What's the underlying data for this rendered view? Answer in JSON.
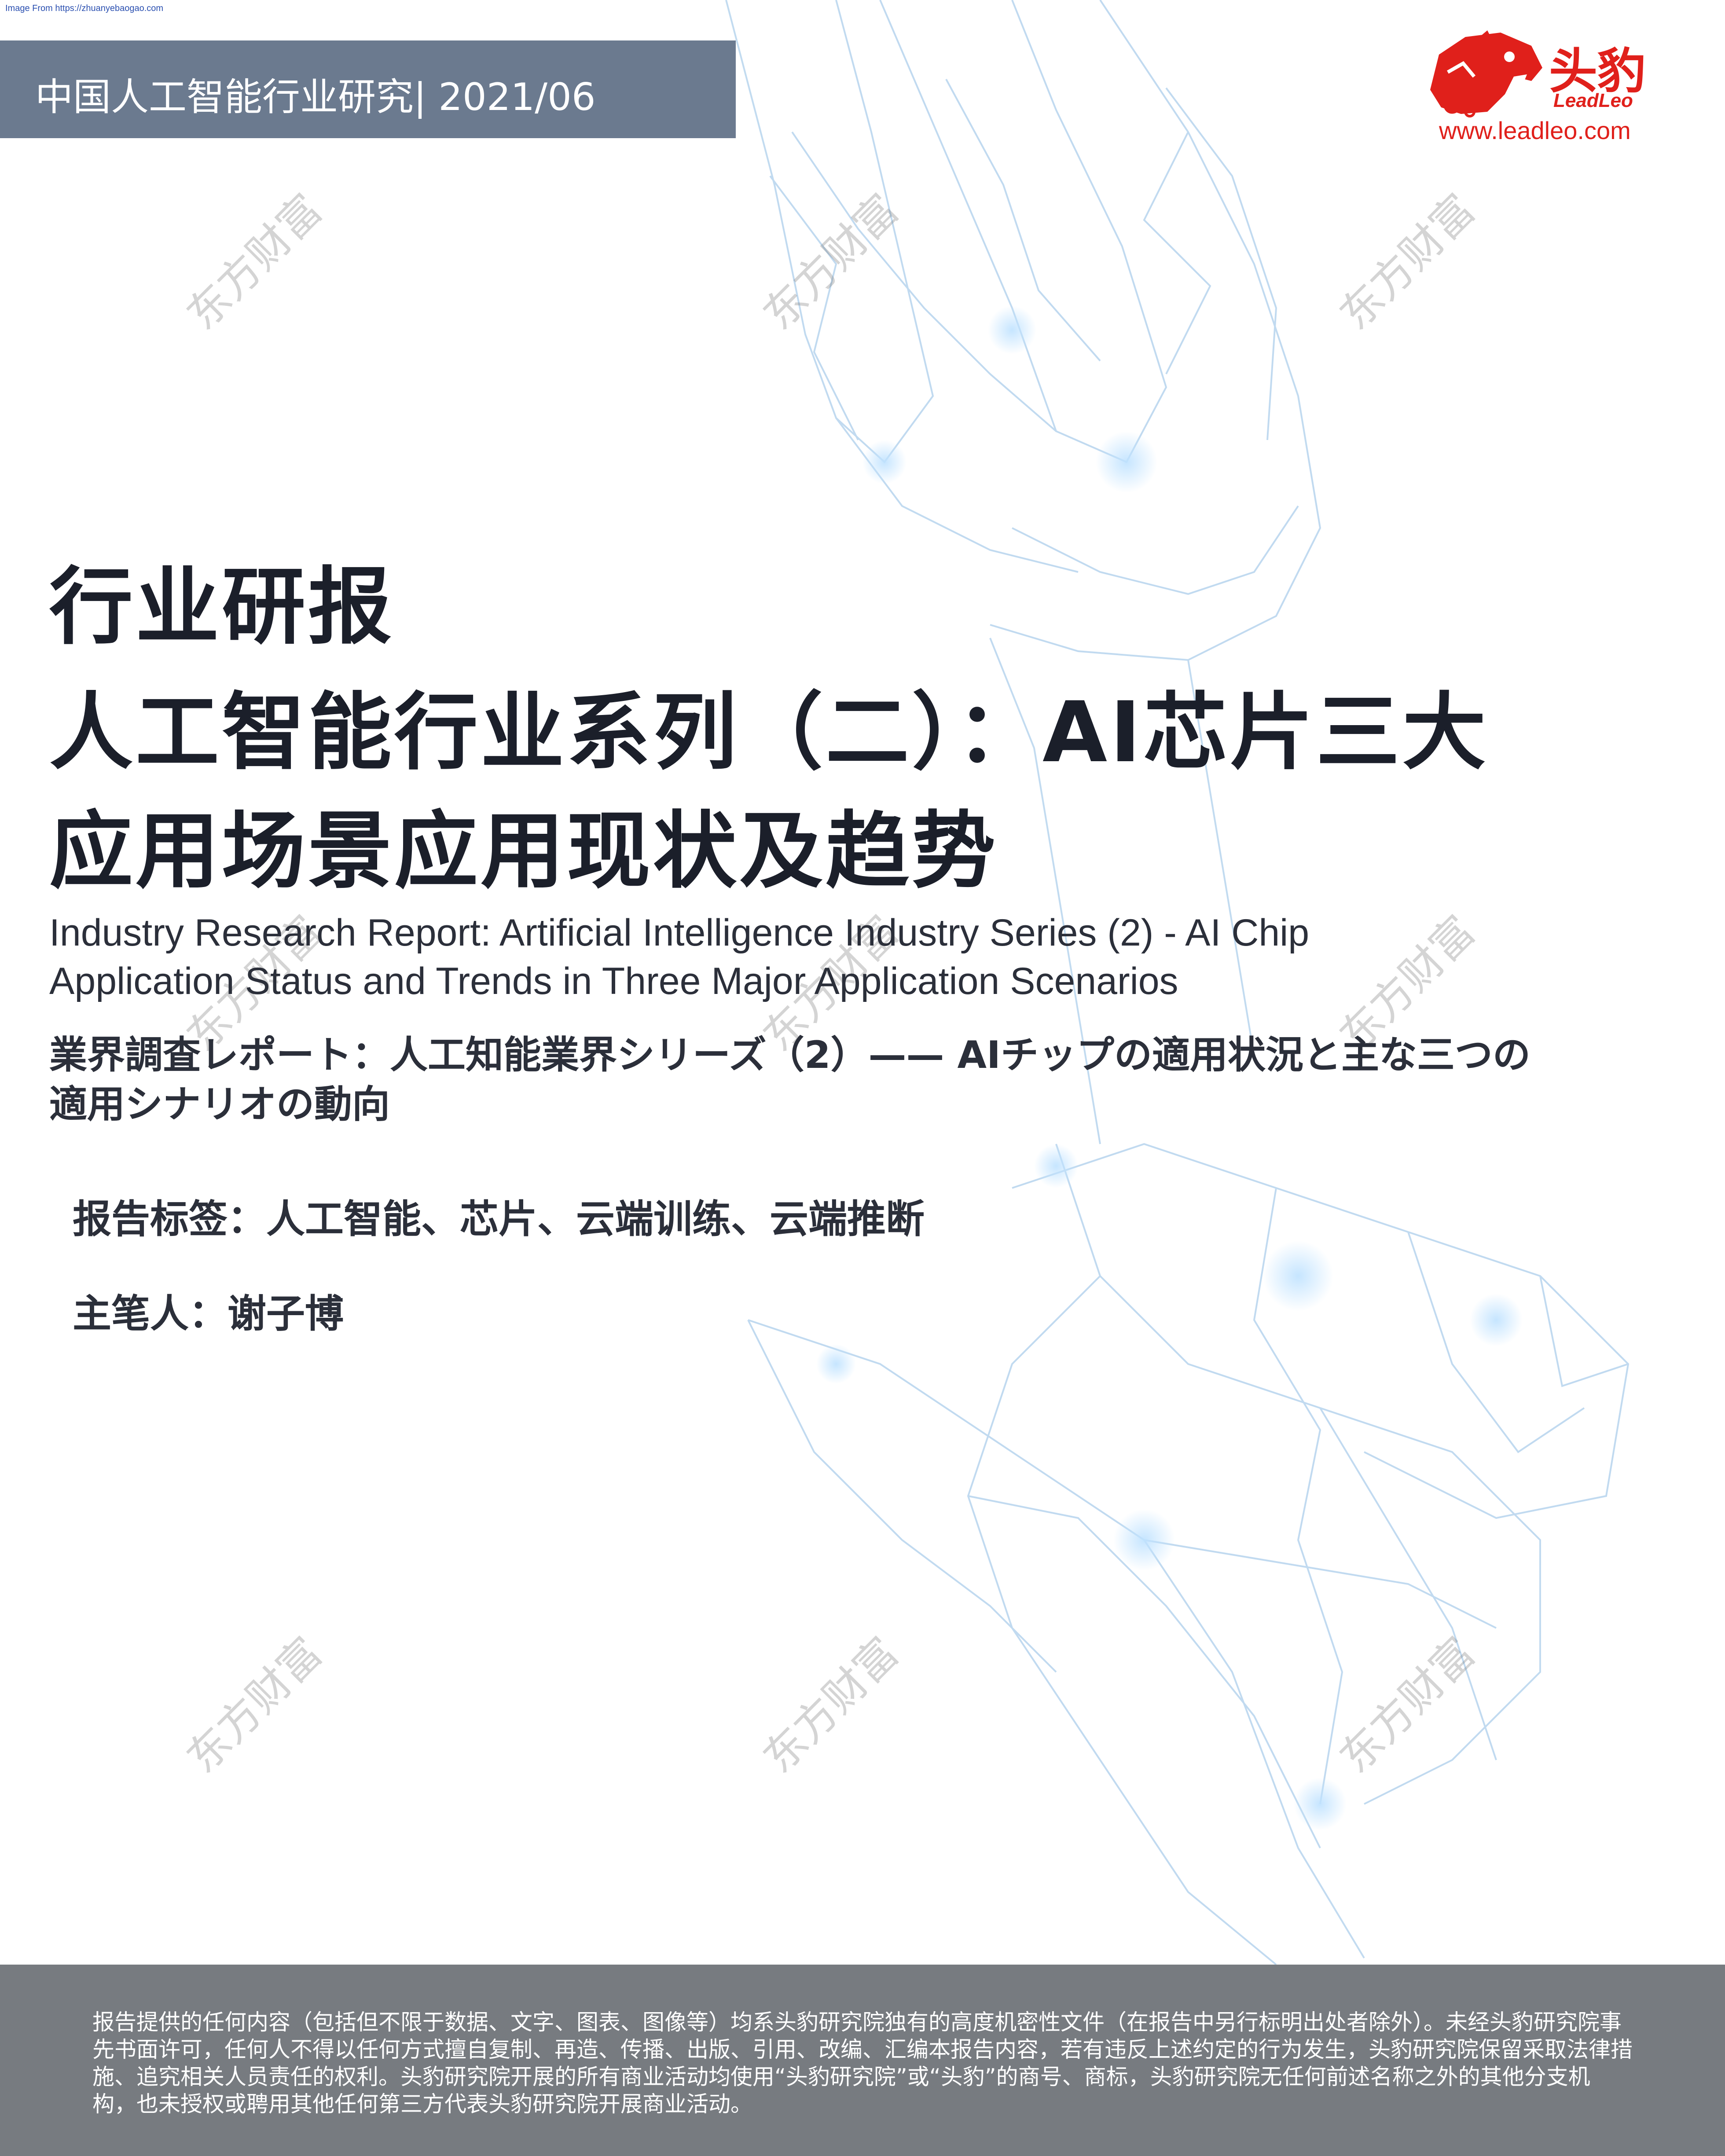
{
  "source_note": "Image From https://zhuanyebaogao.com",
  "header": {
    "series": "中国人工智能行业研究| 2021/06"
  },
  "logo": {
    "name_cn": "头豹",
    "name_en": "LeadLeo",
    "url": "www.leadleo.com",
    "icon": "leopard-head-icon",
    "brand_color": "#e0201b"
  },
  "watermark": {
    "text": "东方财富"
  },
  "title": {
    "kicker": "行业研报",
    "main": "人工智能行业系列（二）：AI芯片三大应用场景应用现状及趋势",
    "english": "Industry Research Report: Artificial Intelligence Industry Series (2) - AI Chip Application Status and Trends in Three Major Application Scenarios",
    "japanese": "業界調査レポート：人工知能業界シリーズ（2）—— AIチップの適用状況と主な三つの適用シナリオの動向"
  },
  "meta": {
    "tags": "报告标签：人工智能、芯片、云端训练、云端推断",
    "author": "主笔人：谢子博"
  },
  "footer": {
    "disclaimer": "报告提供的任何内容（包括但不限于数据、文字、图表、图像等）均系头豹研究院独有的高度机密性文件（在报告中另行标明出处者除外）。未经头豹研究院事先书面许可，任何人不得以任何方式擅自复制、再造、传播、出版、引用、改编、汇编本报告内容，若有违反上述约定的行为发生，头豹研究院保留采取法律措施、追究相关人员责任的权利。头豹研究院开展的所有商业活动均使用“头豹研究院”或“头豹”的商号、商标，头豹研究院无任何前述名称之外的其他分支机构，也未授权或聘用其他任何第三方代表头豹研究院开展商业活动。"
  },
  "colors": {
    "header_band": "#6b7a8f",
    "footer_band": "#777b80",
    "title_text": "#1b1f2a",
    "art_line": "#7fb2dc"
  }
}
